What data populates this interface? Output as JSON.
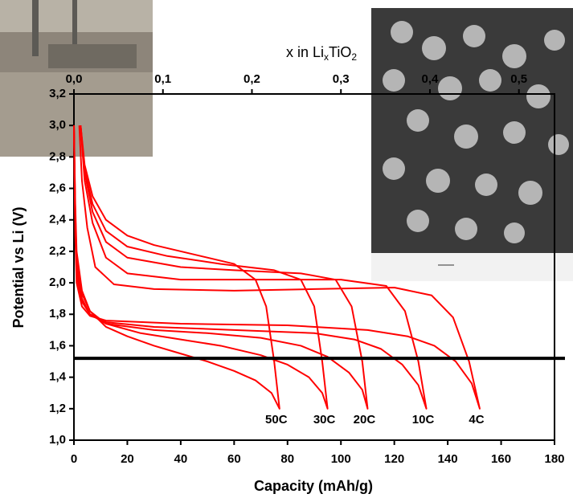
{
  "chart_data": {
    "type": "line",
    "title": [
      "x in Li",
      "x",
      "TiO",
      "2"
    ],
    "xlabel": "Capacity (mAh/g)",
    "ylabel": "Potential vs Li (V)",
    "xlim": [
      0,
      180
    ],
    "xticks": [
      0,
      20,
      40,
      60,
      80,
      100,
      120,
      140,
      160,
      180
    ],
    "ylim": [
      1.0,
      3.2
    ],
    "yticks": [
      {
        "value": 1.0,
        "label": "1,0"
      },
      {
        "value": 1.2,
        "label": "1,2"
      },
      {
        "value": 1.4,
        "label": "1,4"
      },
      {
        "value": 1.6,
        "label": "1,6"
      },
      {
        "value": 1.8,
        "label": "1,8"
      },
      {
        "value": 2.0,
        "label": "2,0"
      },
      {
        "value": 2.2,
        "label": "2,2"
      },
      {
        "value": 2.4,
        "label": "2,4"
      },
      {
        "value": 2.6,
        "label": "2,6"
      },
      {
        "value": 2.8,
        "label": "2,8"
      },
      {
        "value": 3.0,
        "label": "3,0"
      },
      {
        "value": 3.2,
        "label": "3,2"
      }
    ],
    "x2lim": [
      0,
      0.54
    ],
    "x2ticks": [
      {
        "value": 0.0,
        "label": "0,0"
      },
      {
        "value": 0.1,
        "label": "0,1"
      },
      {
        "value": 0.2,
        "label": "0,2"
      },
      {
        "value": 0.3,
        "label": "0,3"
      },
      {
        "value": 0.4,
        "label": "0,4"
      },
      {
        "value": 0.5,
        "label": "0,5"
      }
    ],
    "hline": 1.52,
    "series": [
      {
        "name": "50C",
        "color": "#ff0000",
        "x": [
          0,
          0.5,
          1,
          3,
          6,
          12,
          20,
          30,
          40,
          50,
          60,
          68,
          74,
          77,
          75,
          72,
          68,
          60,
          45,
          30,
          20,
          12,
          7,
          4,
          2.5
        ],
        "values": [
          3.0,
          2.5,
          2.2,
          1.95,
          1.82,
          1.72,
          1.66,
          1.6,
          1.55,
          1.5,
          1.44,
          1.38,
          1.3,
          1.2,
          1.5,
          1.85,
          2.02,
          2.12,
          2.18,
          2.24,
          2.3,
          2.4,
          2.55,
          2.75,
          3.0
        ]
      },
      {
        "name": "30C",
        "color": "#ff0000",
        "x": [
          0,
          0.5,
          1,
          3,
          6,
          12,
          25,
          40,
          55,
          70,
          80,
          88,
          93,
          95,
          93,
          90,
          85,
          75,
          55,
          35,
          20,
          12,
          7,
          4,
          2.5
        ],
        "values": [
          3.0,
          2.45,
          2.15,
          1.93,
          1.82,
          1.74,
          1.68,
          1.64,
          1.6,
          1.54,
          1.48,
          1.4,
          1.3,
          1.2,
          1.5,
          1.85,
          2.02,
          2.08,
          2.12,
          2.17,
          2.23,
          2.33,
          2.5,
          2.72,
          3.0
        ]
      },
      {
        "name": "20C",
        "color": "#ff0000",
        "x": [
          0,
          0.5,
          1,
          3,
          6,
          12,
          30,
          50,
          70,
          85,
          95,
          103,
          108,
          110,
          108,
          104,
          98,
          85,
          60,
          40,
          20,
          12,
          7,
          4,
          2.5
        ],
        "values": [
          3.0,
          2.4,
          2.1,
          1.9,
          1.8,
          1.74,
          1.7,
          1.68,
          1.65,
          1.6,
          1.53,
          1.43,
          1.32,
          1.2,
          1.5,
          1.85,
          2.02,
          2.06,
          2.08,
          2.1,
          2.16,
          2.26,
          2.45,
          2.7,
          3.0
        ]
      },
      {
        "name": "10C",
        "color": "#ff0000",
        "x": [
          0,
          0.5,
          1,
          3,
          6,
          12,
          30,
          60,
          90,
          105,
          115,
          123,
          129,
          132,
          129,
          124,
          117,
          100,
          70,
          40,
          20,
          12,
          7,
          4,
          2.5
        ],
        "values": [
          3.0,
          2.35,
          2.05,
          1.88,
          1.8,
          1.75,
          1.72,
          1.7,
          1.68,
          1.64,
          1.58,
          1.48,
          1.35,
          1.2,
          1.5,
          1.82,
          1.98,
          2.02,
          2.02,
          2.02,
          2.06,
          2.16,
          2.38,
          2.65,
          3.0
        ]
      },
      {
        "name": "4C",
        "color": "#ff0000",
        "x": [
          0,
          0.5,
          1,
          3,
          6,
          12,
          40,
          80,
          110,
          125,
          135,
          143,
          149,
          152,
          148,
          142,
          134,
          120,
          90,
          60,
          30,
          15,
          8,
          5,
          3,
          2
        ],
        "values": [
          3.0,
          2.3,
          2.0,
          1.85,
          1.79,
          1.76,
          1.74,
          1.73,
          1.7,
          1.66,
          1.6,
          1.5,
          1.36,
          1.2,
          1.5,
          1.78,
          1.92,
          1.97,
          1.96,
          1.95,
          1.96,
          1.99,
          2.1,
          2.35,
          2.65,
          3.0
        ]
      }
    ]
  }
}
